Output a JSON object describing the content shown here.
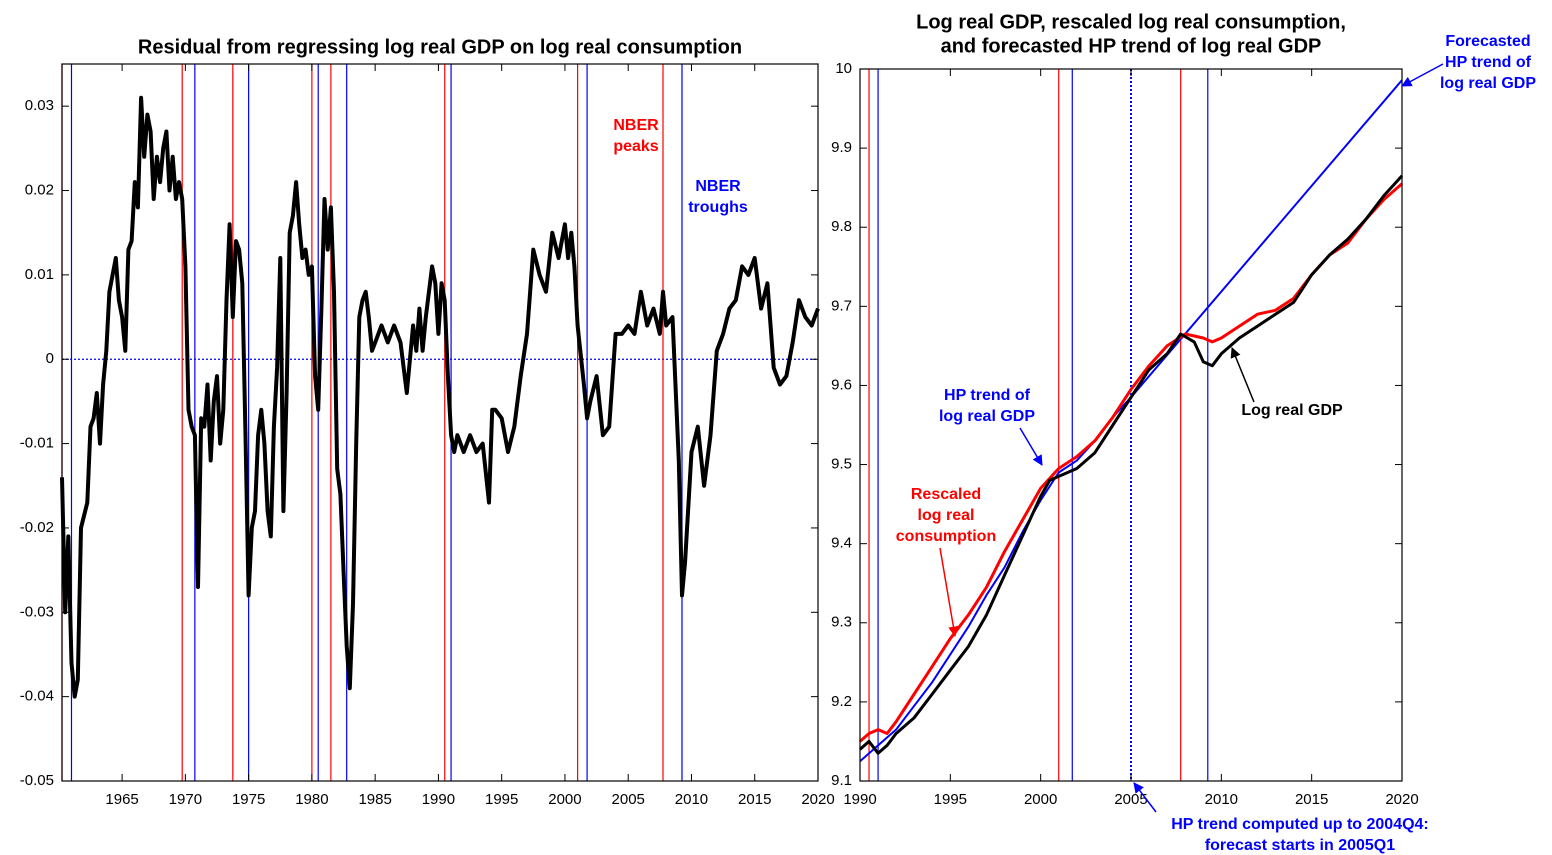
{
  "chart_data": [
    {
      "type": "line",
      "title": [
        "Residual from regressing log real GDP on log real consumption"
      ],
      "xlim": [
        1960.25,
        2020
      ],
      "ylim": [
        -0.05,
        0.035
      ],
      "xticks": [
        1965,
        1970,
        1975,
        1980,
        1985,
        1990,
        1995,
        2000,
        2005,
        2010,
        2015,
        2020
      ],
      "yticks": [
        -0.05,
        -0.04,
        -0.03,
        -0.02,
        -0.01,
        0,
        0.01,
        0.02,
        0.03
      ],
      "reference_line": {
        "value": 0,
        "color": "#0000ff",
        "style": "dotted"
      },
      "vlines": [
        {
          "color": "#ff0000",
          "style": "solid",
          "x": [
            1960.25,
            1969.75,
            1973.75,
            1980.0,
            1981.5,
            1990.5,
            2001.0,
            2007.75
          ]
        },
        {
          "color": "#0000ff",
          "style": "solid",
          "x": [
            1961.0,
            1970.75,
            1975.0,
            1980.5,
            1982.75,
            1991.0,
            2001.75,
            2009.25
          ]
        }
      ],
      "annotations": [
        {
          "text": [
            "NBER",
            "peaks"
          ],
          "color": "#ff0000"
        },
        {
          "text": [
            "NBER",
            "troughs"
          ],
          "color": "#0000ff"
        }
      ],
      "series": [
        {
          "color": "#000000",
          "x": [
            1960.25,
            1960.5,
            1960.75,
            1961,
            1961.25,
            1961.5,
            1961.75,
            1962.25,
            1962.5,
            1962.75,
            1963,
            1963.25,
            1963.5,
            1963.75,
            1964,
            1964.25,
            1964.5,
            1964.75,
            1965,
            1965.25,
            1965.5,
            1965.75,
            1966,
            1966.25,
            1966.5,
            1966.75,
            1967,
            1967.25,
            1967.5,
            1967.75,
            1968,
            1968.25,
            1968.5,
            1968.75,
            1969,
            1969.25,
            1969.5,
            1969.75,
            1970,
            1970.25,
            1970.5,
            1970.75,
            1971,
            1971.25,
            1971.5,
            1971.75,
            1972,
            1972.25,
            1972.5,
            1972.75,
            1973,
            1973.25,
            1973.5,
            1973.75,
            1974,
            1974.25,
            1974.5,
            1974.75,
            1975,
            1975.25,
            1975.5,
            1975.75,
            1976,
            1976.25,
            1976.5,
            1976.75,
            1977,
            1977.25,
            1977.5,
            1977.75,
            1978,
            1978.25,
            1978.5,
            1978.75,
            1979,
            1979.25,
            1979.5,
            1979.75,
            1980,
            1980.25,
            1980.5,
            1980.75,
            1981,
            1981.25,
            1981.5,
            1981.75,
            1982,
            1982.25,
            1982.5,
            1982.75,
            1983,
            1983.25,
            1983.5,
            1983.75,
            1984,
            1984.25,
            1984.5,
            1984.75,
            1985,
            1985.5,
            1986,
            1986.5,
            1987,
            1987.5,
            1988,
            1988.25,
            1988.5,
            1988.75,
            1989,
            1989.5,
            1989.75,
            1990,
            1990.25,
            1990.5,
            1990.75,
            1991,
            1991.25,
            1991.5,
            1992,
            1992.5,
            1993,
            1993.5,
            1994,
            1994.25,
            1994.5,
            1995,
            1995.5,
            1996,
            1996.5,
            1997,
            1997.5,
            1998,
            1998.5,
            1999,
            1999.5,
            2000,
            2000.25,
            2000.5,
            2000.75,
            2001,
            2001.5,
            2001.75,
            2002,
            2002.5,
            2003,
            2003.5,
            2004,
            2004.5,
            2005,
            2005.5,
            2006,
            2006.5,
            2007,
            2007.5,
            2007.75,
            2008,
            2008.5,
            2009,
            2009.25,
            2009.5,
            2010,
            2010.5,
            2011,
            2011.5,
            2012,
            2012.5,
            2013,
            2013.5,
            2014,
            2014.5,
            2015,
            2015.5,
            2016,
            2016.5,
            2017,
            2017.5,
            2018,
            2018.5,
            2019,
            2019.5,
            2020
          ],
          "values": [
            -0.014,
            -0.03,
            -0.021,
            -0.036,
            -0.04,
            -0.038,
            -0.02,
            -0.017,
            -0.008,
            -0.007,
            -0.004,
            -0.01,
            -0.003,
            0.001,
            0.008,
            0.01,
            0.012,
            0.007,
            0.005,
            0.001,
            0.013,
            0.014,
            0.021,
            0.018,
            0.031,
            0.024,
            0.029,
            0.027,
            0.019,
            0.024,
            0.021,
            0.025,
            0.027,
            0.02,
            0.024,
            0.019,
            0.021,
            0.019,
            0.011,
            -0.006,
            -0.008,
            -0.009,
            -0.027,
            -0.007,
            -0.008,
            -0.003,
            -0.012,
            -0.005,
            -0.002,
            -0.01,
            -0.006,
            0.007,
            0.016,
            0.005,
            0.014,
            0.013,
            0.009,
            -0.009,
            -0.028,
            -0.02,
            -0.018,
            -0.009,
            -0.006,
            -0.01,
            -0.018,
            -0.021,
            -0.008,
            -0.001,
            0.012,
            -0.018,
            -0.004,
            0.015,
            0.017,
            0.021,
            0.016,
            0.012,
            0.013,
            0.01,
            0.011,
            -0.002,
            -0.006,
            0.006,
            0.019,
            0.013,
            0.018,
            0.008,
            -0.013,
            -0.016,
            -0.025,
            -0.034,
            -0.039,
            -0.029,
            -0.01,
            0.005,
            0.007,
            0.008,
            0.005,
            0.001,
            0.002,
            0.004,
            0.002,
            0.004,
            0.002,
            -0.004,
            0.004,
            0.001,
            0.006,
            0.001,
            0.005,
            0.011,
            0.009,
            0.003,
            0.009,
            0.007,
            -0.002,
            -0.009,
            -0.011,
            -0.009,
            -0.011,
            -0.009,
            -0.011,
            -0.01,
            -0.017,
            -0.006,
            -0.006,
            -0.007,
            -0.011,
            -0.008,
            -0.002,
            0.003,
            0.013,
            0.01,
            0.008,
            0.015,
            0.012,
            0.016,
            0.012,
            0.015,
            0.011,
            0.004,
            -0.003,
            -0.007,
            -0.005,
            -0.002,
            -0.009,
            -0.008,
            0.003,
            0.003,
            0.004,
            0.003,
            0.008,
            0.004,
            0.006,
            0.003,
            0.008,
            0.004,
            0.005,
            -0.012,
            -0.028,
            -0.024,
            -0.011,
            -0.008,
            -0.015,
            -0.009,
            0.001,
            0.003,
            0.006,
            0.007,
            0.011,
            0.01,
            0.012,
            0.006,
            0.009,
            -0.001,
            -0.003,
            -0.002,
            0.002,
            0.007,
            0.005,
            0.004,
            0.006
          ]
        }
      ]
    },
    {
      "type": "line",
      "title": [
        "Log real GDP, rescaled log real consumption,",
        "and forecasted HP trend of log real GDP"
      ],
      "xlim": [
        1990,
        2020
      ],
      "ylim": [
        9.1,
        10
      ],
      "xticks": [
        1990,
        1995,
        2000,
        2005,
        2010,
        2015,
        2020
      ],
      "yticks": [
        9.1,
        9.2,
        9.3,
        9.4,
        9.5,
        9.6,
        9.7,
        9.8,
        9.9,
        10
      ],
      "vlines": [
        {
          "color": "#ff0000",
          "style": "solid",
          "x": [
            1990.5,
            2001.0,
            2007.75
          ]
        },
        {
          "color": "#0000ff",
          "style": "solid",
          "x": [
            1991.0,
            2001.75,
            2009.25
          ]
        },
        {
          "color": "#0000ff",
          "style": "dotted",
          "x": [
            2005.0
          ]
        }
      ],
      "annotations": [
        {
          "text": [
            "Forecasted",
            "HP trend of",
            "log real GDP"
          ],
          "color": "#0000ff"
        },
        {
          "text": [
            "HP trend of",
            "log real GDP"
          ],
          "color": "#0000ff"
        },
        {
          "text": [
            "Rescaled",
            "log real",
            "consumption"
          ],
          "color": "#ff0000"
        },
        {
          "text": [
            "Log real GDP"
          ],
          "color": "#000000"
        },
        {
          "text": [
            "HP trend computed up to 2004Q4:",
            "forecast starts in 2005Q1"
          ],
          "color": "#0000ff"
        }
      ],
      "series": [
        {
          "color": "#0000ff",
          "x": [
            1990,
            1991,
            1992,
            1993,
            1994,
            1995,
            1996,
            1997,
            1998,
            1999,
            2000,
            2001,
            2002,
            2003,
            2004,
            2005,
            2020
          ],
          "values": [
            9.125,
            9.145,
            9.165,
            9.195,
            9.225,
            9.26,
            9.295,
            9.335,
            9.37,
            9.415,
            9.455,
            9.49,
            9.505,
            9.53,
            9.56,
            9.585,
            9.986
          ]
        },
        {
          "color": "#ff0000",
          "x": [
            1990,
            1990.5,
            1991,
            1991.5,
            1992,
            1993,
            1994,
            1995,
            1996,
            1997,
            1998,
            1999,
            2000,
            2001,
            2002,
            2003,
            2004,
            2005,
            2006,
            2007,
            2008,
            2009,
            2009.5,
            2010,
            2011,
            2012,
            2013,
            2014,
            2015,
            2016,
            2017,
            2018,
            2019,
            2020
          ],
          "values": [
            9.15,
            9.16,
            9.165,
            9.16,
            9.175,
            9.21,
            9.245,
            9.28,
            9.31,
            9.345,
            9.39,
            9.43,
            9.47,
            9.495,
            9.51,
            9.53,
            9.56,
            9.595,
            9.625,
            9.65,
            9.665,
            9.66,
            9.655,
            9.66,
            9.675,
            9.69,
            9.695,
            9.71,
            9.74,
            9.765,
            9.78,
            9.81,
            9.835,
            9.855
          ]
        },
        {
          "color": "#000000",
          "x": [
            1990,
            1990.5,
            1991,
            1991.5,
            1992,
            1993,
            1994,
            1995,
            1996,
            1997,
            1998,
            1999,
            2000,
            2000.5,
            2001,
            2002,
            2003,
            2004,
            2005,
            2006,
            2007,
            2007.75,
            2008.5,
            2009,
            2009.5,
            2010,
            2011,
            2012,
            2013,
            2014,
            2015,
            2016,
            2017,
            2018,
            2019,
            2020
          ],
          "values": [
            9.14,
            9.15,
            9.135,
            9.145,
            9.16,
            9.18,
            9.21,
            9.24,
            9.27,
            9.31,
            9.36,
            9.41,
            9.46,
            9.48,
            9.485,
            9.495,
            9.515,
            9.55,
            9.585,
            9.62,
            9.64,
            9.665,
            9.655,
            9.63,
            9.625,
            9.64,
            9.66,
            9.675,
            9.69,
            9.705,
            9.74,
            9.765,
            9.785,
            9.81,
            9.84,
            9.865
          ]
        }
      ]
    }
  ]
}
